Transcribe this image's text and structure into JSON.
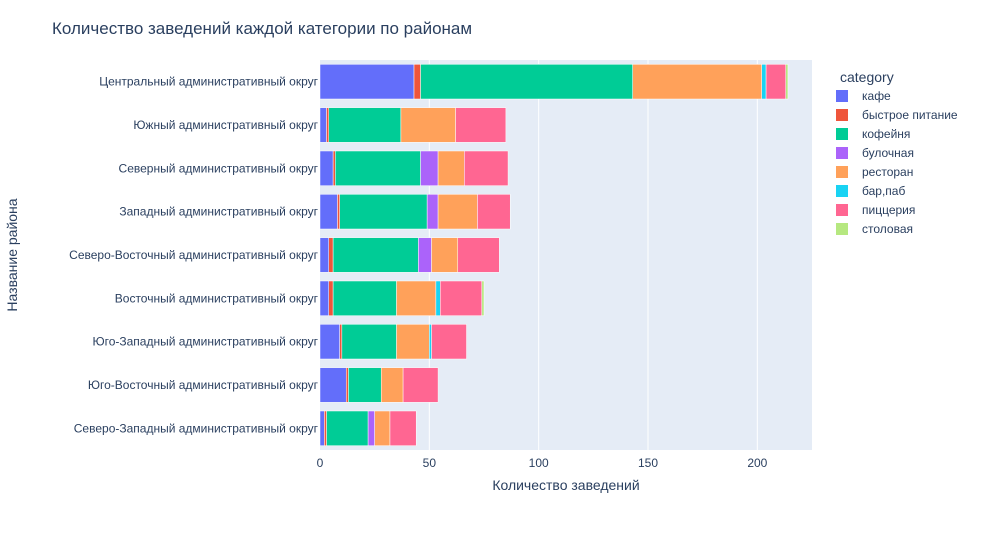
{
  "chart_data": {
    "type": "bar",
    "orientation": "horizontal",
    "barmode": "stack",
    "title": "Количество заведений каждой категории по районам",
    "xlabel": "Количество заведений",
    "ylabel": "Название района",
    "xlim": [
      0,
      225
    ],
    "xticks": [
      0,
      50,
      100,
      150,
      200
    ],
    "grid": true,
    "legend_title": "category",
    "legend_position": "right",
    "categories": [
      "Центральный административный округ",
      "Южный административный округ",
      "Северный административный округ",
      "Западный административный округ",
      "Северо-Восточный административный округ",
      "Восточный административный округ",
      "Юго-Западный административный округ",
      "Юго-Восточный административный округ",
      "Северо-Западный административный округ"
    ],
    "series": [
      {
        "name": "кафе",
        "color": "#636efa",
        "values": [
          43,
          3,
          6,
          8,
          4,
          4,
          9,
          12,
          2
        ]
      },
      {
        "name": "быстрое питание",
        "color": "#ef553b",
        "values": [
          3,
          1,
          1,
          1,
          2,
          2,
          1,
          1,
          1
        ]
      },
      {
        "name": "кофейня",
        "color": "#00cc96",
        "values": [
          97,
          33,
          39,
          40,
          39,
          29,
          25,
          15,
          19
        ]
      },
      {
        "name": "булочная",
        "color": "#ab63fa",
        "values": [
          0,
          0,
          8,
          5,
          6,
          0,
          0,
          0,
          3
        ]
      },
      {
        "name": "ресторан",
        "color": "#ffa15a",
        "values": [
          59,
          25,
          12,
          18,
          12,
          18,
          15,
          10,
          7
        ]
      },
      {
        "name": "бар,паб",
        "color": "#19d3f3",
        "values": [
          2,
          0,
          0,
          0,
          0,
          2,
          1,
          0,
          0
        ]
      },
      {
        "name": "пиццерия",
        "color": "#ff6692",
        "values": [
          9,
          23,
          20,
          15,
          19,
          19,
          16,
          16,
          12
        ]
      },
      {
        "name": "столовая",
        "color": "#b6e880",
        "values": [
          1,
          0,
          0,
          0,
          0,
          1,
          0,
          0,
          0
        ]
      }
    ]
  }
}
